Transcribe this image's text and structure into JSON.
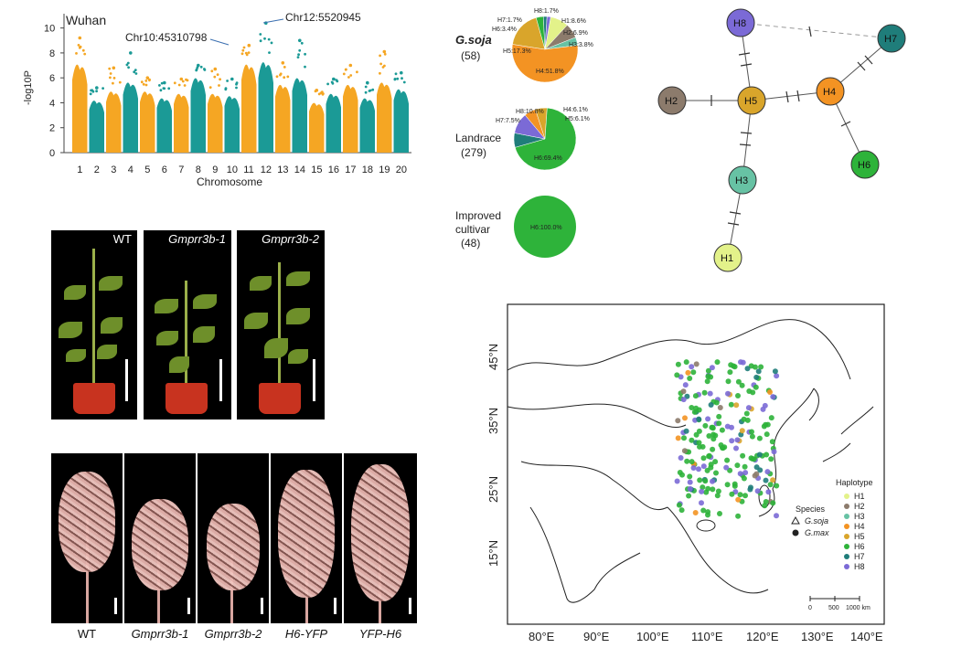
{
  "manhattan": {
    "location_label": "Wuhan",
    "xlabel": "Chromosome",
    "ylabel": "-log10P",
    "yticks": [
      "0",
      "2",
      "4",
      "6",
      "8",
      "10"
    ],
    "chromosomes": [
      "1",
      "2",
      "3",
      "4",
      "5",
      "6",
      "7",
      "8",
      "9",
      "10",
      "11",
      "12",
      "13",
      "14",
      "15",
      "16",
      "17",
      "18",
      "19",
      "20"
    ],
    "annotation_1": "Chr10:45310798",
    "annotation_2": "Chr12:5520945",
    "colors": {
      "odd": "#f5a623",
      "even": "#1b9a96"
    }
  },
  "chart_data": [
    {
      "type": "scatter",
      "title": "Wuhan",
      "xlabel": "Chromosome",
      "ylabel": "-log10P",
      "ylim": [
        0,
        11
      ],
      "categories": [
        "1",
        "2",
        "3",
        "4",
        "5",
        "6",
        "7",
        "8",
        "9",
        "10",
        "11",
        "12",
        "13",
        "14",
        "15",
        "16",
        "17",
        "18",
        "19",
        "20"
      ],
      "max_values": [
        9.2,
        5.2,
        6.8,
        8.0,
        6.0,
        5.6,
        5.9,
        7.0,
        6.7,
        5.9,
        8.6,
        10.4,
        7.2,
        9.0,
        5.0,
        5.9,
        7.0,
        5.6,
        8.1,
        6.4
      ],
      "typical_peak": [
        7.8,
        4.6,
        5.4,
        6.2,
        5.4,
        4.8,
        5.2,
        6.6,
        5.2,
        5.0,
        7.8,
        8.0,
        6.0,
        6.6,
        4.4,
        5.2,
        6.0,
        4.8,
        6.2,
        5.6
      ]
    },
    {
      "type": "pie",
      "title": "G.soja (58)",
      "labels": [
        "H1",
        "H2",
        "H3",
        "H4",
        "H5",
        "H6",
        "H7",
        "H8"
      ],
      "values": [
        8.6,
        6.9,
        3.8,
        51.8,
        17.3,
        3.4,
        1.7,
        1.7
      ]
    },
    {
      "type": "pie",
      "title": "Landrace (279)",
      "labels": [
        "H4",
        "H5",
        "H6",
        "H7",
        "H8"
      ],
      "values": [
        6.1,
        6.1,
        69.4,
        7.5,
        10.8
      ]
    },
    {
      "type": "pie",
      "title": "Improved cultivar (48)",
      "labels": [
        "H6"
      ],
      "values": [
        100.0
      ]
    }
  ],
  "pies": {
    "soja_title": "G.soja",
    "soja_n": "(58)",
    "landrace_title": "Landrace",
    "landrace_n": "(279)",
    "improved_title1": "Improved",
    "improved_title2": "cultivar",
    "improved_n": "(48)",
    "soja_labels": [
      "H8:1.7%",
      "H7:1.7%",
      "H6:3.4%",
      "H1:8.6%",
      "H2:6.9%",
      "H3:3.8%",
      "H5:17.3%",
      "H4:51.8%"
    ],
    "landrace_labels": [
      "H8:10.8%",
      "H4:6.1%",
      "H7:7.5%",
      "H5:6.1%",
      "H6:69.4%"
    ],
    "improved_labels": [
      "H6:100.0%"
    ]
  },
  "network": {
    "nodes": [
      "H8",
      "H7",
      "H2",
      "H5",
      "H4",
      "H6",
      "H3",
      "H1"
    ],
    "colors": {
      "H1": "#e3f28a",
      "H2": "#8c7b6c",
      "H3": "#67c2a4",
      "H4": "#f39323",
      "H5": "#d9a52b",
      "H6": "#2eb33a",
      "H7": "#1f7d7a",
      "H8": "#7b6ad6"
    }
  },
  "plants": {
    "labels": [
      "WT",
      "Gmprr3b-1",
      "Gmprr3b-2"
    ]
  },
  "inflorescences": {
    "labels": [
      "WT",
      "Gmprr3b-1",
      "Gmprr3b-2",
      "H6-YFP",
      "YFP-H6"
    ]
  },
  "map": {
    "lat_labels": [
      "45°N",
      "35°N",
      "25°N",
      "15°N"
    ],
    "lon_labels": [
      "80°E",
      "90°E",
      "100°E",
      "110°E",
      "120°E",
      "130°E",
      "140°E"
    ],
    "species_title": "Species",
    "species_items": [
      "G.soja",
      "G.max"
    ],
    "haplotype_title": "Haplotype",
    "haplotype_items": [
      "H1",
      "H2",
      "H3",
      "H4",
      "H5",
      "H6",
      "H7",
      "H8"
    ],
    "scale_labels": [
      "0",
      "500",
      "1000 km"
    ]
  }
}
